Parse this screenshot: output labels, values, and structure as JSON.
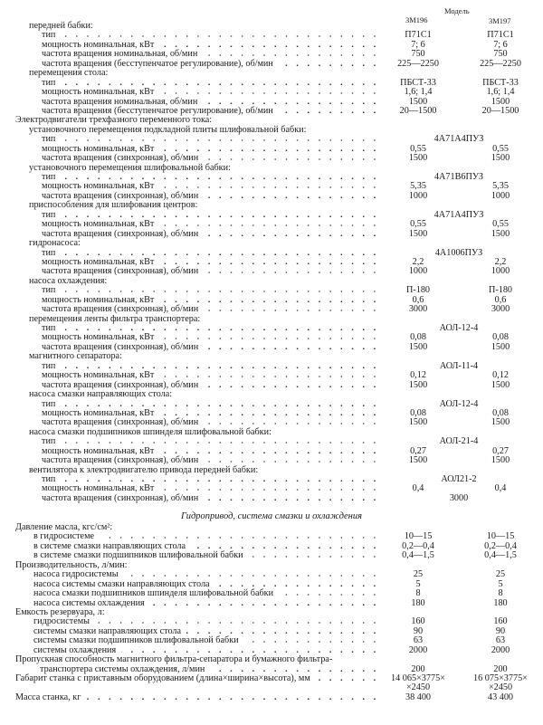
{
  "header": {
    "model_label": "Модель",
    "models": [
      "3М196",
      "3М197"
    ]
  },
  "section_title": "Гидропривод, система смазки и охлаждения",
  "part1": [
    {
      "level": 1,
      "label": "передней бабки:"
    },
    {
      "level": 2,
      "label": "тип",
      "leader": true,
      "v1": "П71С1",
      "v2": "П71С1"
    },
    {
      "level": 2,
      "label": "мощность номинальная, кВт",
      "leader": true,
      "v1": "7; 6",
      "v2": "7; 6"
    },
    {
      "level": 2,
      "label": "частота вращения номинальная, об/мин",
      "leader": true,
      "v1": "750",
      "v2": "750"
    },
    {
      "level": 2,
      "label": "частота вращения (бесступенчатое регулирование), об/мин",
      "leader": true,
      "v1": "225—2250",
      "v2": "225—2250"
    },
    {
      "level": 1,
      "label": "перемещения стола:"
    },
    {
      "level": 2,
      "label": "тип",
      "leader": true,
      "v1": "ПБСТ-33",
      "v2": "ПБСТ-33"
    },
    {
      "level": 2,
      "label": "мощность номинальная, кВт",
      "leader": true,
      "v1": "1,6; 1,4",
      "v2": "1,6; 1,4"
    },
    {
      "level": 2,
      "label": "частота вращения номинальная, об/мин",
      "leader": true,
      "v1": "1500",
      "v2": "1500"
    },
    {
      "level": 2,
      "label": "частота вращения (бесступенчатое регулирование), об/мин",
      "leader": true,
      "v1": "20—1500",
      "v2": "20—1500"
    },
    {
      "level": 0,
      "label": "Электродвигатели трехфазного переменного тока:"
    },
    {
      "level": 1,
      "label": "установочного перемещения подкладной плиты шлифовальной бабки:"
    },
    {
      "level": 2,
      "label": "тип",
      "leader": true,
      "center": "4А71А4ПУЗ"
    },
    {
      "level": 2,
      "label": "мощность номинальная, кВт",
      "leader": true,
      "v1": "0,55",
      "v2": "0,55"
    },
    {
      "level": 2,
      "label": "частота вращения (синхронная), об/мин",
      "leader": true,
      "v1": "1500",
      "v2": "1500"
    },
    {
      "level": 1,
      "label": "установочного перемещения шлифовальной бабки:"
    },
    {
      "level": 2,
      "label": "тип",
      "leader": true,
      "center": "4А71В6ПУЗ"
    },
    {
      "level": 2,
      "label": "мощность номинальная, кВт",
      "leader": true,
      "v1": "5,35",
      "v2": "5,35"
    },
    {
      "level": 2,
      "label": "частота вращения (синхронная), об/мин",
      "leader": true,
      "v1": "1000",
      "v2": "1000"
    },
    {
      "level": 1,
      "label": "приспособления для шлифования центров:"
    },
    {
      "level": 2,
      "label": "тип",
      "leader": true,
      "center": "4А71А4ПУЗ"
    },
    {
      "level": 2,
      "label": "мощность номинальная, кВт",
      "leader": true,
      "v1": "0,55",
      "v2": "0,55"
    },
    {
      "level": 2,
      "label": "частота вращения (синхронная), об/мин",
      "leader": true,
      "v1": "1500",
      "v2": "1500"
    },
    {
      "level": 1,
      "label": "гидронасоса:"
    },
    {
      "level": 2,
      "label": "тип",
      "leader": true,
      "center": "4А1006ПУЗ"
    },
    {
      "level": 2,
      "label": "мощность номинальная, кВт",
      "leader": true,
      "v1": "2,2",
      "v2": "2,2"
    },
    {
      "level": 2,
      "label": "частота вращения (синхронная), об/мин",
      "leader": true,
      "v1": "1000",
      "v2": "1000"
    },
    {
      "level": 1,
      "label": "насоса охлаждения:"
    },
    {
      "level": 2,
      "label": "тип",
      "leader": true,
      "v1": "П-180",
      "v2": "П-180"
    },
    {
      "level": 2,
      "label": "мощность номинальная, кВт",
      "leader": true,
      "v1": "0,6",
      "v2": "0,6"
    },
    {
      "level": 2,
      "label": "частота вращения (синхронная), об/мин",
      "leader": true,
      "v1": "3000",
      "v2": "3000"
    },
    {
      "level": 1,
      "label": "перемещения ленты фильтра транспортера:"
    },
    {
      "level": 2,
      "label": "тип",
      "leader": true,
      "center": "АОЛ-12-4"
    },
    {
      "level": 2,
      "label": "мощность номинальная, кВт",
      "leader": true,
      "v1": "0,08",
      "v2": "0,08"
    },
    {
      "level": 2,
      "label": "частота вращения (синхронная), об/мин",
      "leader": true,
      "v1": "1500",
      "v2": "1500"
    },
    {
      "level": 1,
      "label": "магнитного сепаратора:"
    },
    {
      "level": 2,
      "label": "тип",
      "leader": true,
      "center": "АОЛ-11-4"
    },
    {
      "level": 2,
      "label": "мощность номинальная, кВт",
      "leader": true,
      "v1": "0,12",
      "v2": "0,12"
    },
    {
      "level": 2,
      "label": "частота вращения (синхронная), об/мин",
      "leader": true,
      "v1": "1500",
      "v2": "1500"
    },
    {
      "level": 1,
      "label": "насоса смазки направляющих стола:"
    },
    {
      "level": 2,
      "label": "тип",
      "leader": true,
      "center": "АОЛ-12-4"
    },
    {
      "level": 2,
      "label": "мощность номинальная, кВт",
      "leader": true,
      "v1": "0,08",
      "v2": "0,08"
    },
    {
      "level": 2,
      "label": "частота вращения (синхронная), об/мин",
      "leader": true,
      "v1": "1500",
      "v2": "1500"
    },
    {
      "level": 1,
      "label": "насоса смазки подшипников шпинделя шлифовальной бабки:"
    },
    {
      "level": 2,
      "label": "тип",
      "leader": true,
      "center": "АОЛ-21-4"
    },
    {
      "level": 2,
      "label": "мощность номинальная, кВт",
      "leader": true,
      "v1": "0,27",
      "v2": "0,27"
    },
    {
      "level": 2,
      "label": "частота вращения (синхронная), об/мин",
      "leader": true,
      "v1": "1500",
      "v2": "1500"
    },
    {
      "level": 1,
      "label": "вентилятора к электродвигателю привода передней бабки:"
    },
    {
      "level": 2,
      "label": "тип",
      "leader": true,
      "center": "АОЛ21-2"
    },
    {
      "level": 2,
      "label": "мощность номинальная, кВт",
      "leader": true,
      "v1": "0,4",
      "v2": "0,4"
    },
    {
      "level": 2,
      "label": "частота вращения (синхронная), об/мин",
      "leader": true,
      "center": "3000"
    }
  ],
  "part2": [
    {
      "level": 0,
      "label": "Давление масла, кгс/см²:"
    },
    {
      "level": 3,
      "label": "в гидросистеме",
      "leader": true,
      "v1": "10—15",
      "v2": "10—15"
    },
    {
      "level": 3,
      "label": "в системе смазки направляющих стола",
      "leader": true,
      "v1": "0,2—0,4",
      "v2": "0,2—0,4"
    },
    {
      "level": 3,
      "label": "в системе смазки подшипников шлифовальной бабки",
      "leader": true,
      "v1": "0,4—1,5",
      "v2": "0,4—1,5"
    },
    {
      "level": 0,
      "label": "Производительность, л/мин:"
    },
    {
      "level": 3,
      "label": "насоса гидросистемы",
      "leader": true,
      "v1": "25",
      "v2": "25"
    },
    {
      "level": 3,
      "label": "насоса системы смазки направляющих стола",
      "leader": true,
      "v1": "5",
      "v2": "5"
    },
    {
      "level": 3,
      "label": "насоса смазки подшипников шпинделя шлифовальной бабки",
      "leader": true,
      "v1": "8",
      "v2": "8"
    },
    {
      "level": 3,
      "label": "насоса системы охлаждения",
      "leader": true,
      "v1": "180",
      "v2": "180"
    },
    {
      "level": 0,
      "label": "Емкость резервуара, л:"
    },
    {
      "level": 3,
      "label": "гидросистемы",
      "leader": true,
      "v1": "160",
      "v2": "160"
    },
    {
      "level": 3,
      "label": "системы смазки направляющих стола",
      "leader": true,
      "v1": "90",
      "v2": "90"
    },
    {
      "level": 3,
      "label": "системы смазки подшипников шлифовальной бабки",
      "leader": true,
      "v1": "63",
      "v2": "63"
    },
    {
      "level": 3,
      "label": "системы охлаждения",
      "leader": true,
      "v1": "2000",
      "v2": "2000"
    },
    {
      "level": 0,
      "label": "Пропускная способность магнитного фильтра-сепаратора и бумажного фильтра-"
    },
    {
      "level": 4,
      "label": "транспортера системы охлаждения, л/мин",
      "leader": true,
      "v1": "200",
      "v2": "200"
    },
    {
      "level": 0,
      "label": "Габарит станка с приставным оборудованием (длина×ширина×высота), мм",
      "leader": true,
      "v1": "14 065×3775×",
      "v2": "16 075×3775×"
    },
    {
      "level": 0,
      "label": "",
      "v1": "×2450",
      "v2": "×2450"
    },
    {
      "level": 0,
      "label": "Масса станка, кг",
      "leader": true,
      "v1": "38 400",
      "v2": "43 400"
    }
  ]
}
